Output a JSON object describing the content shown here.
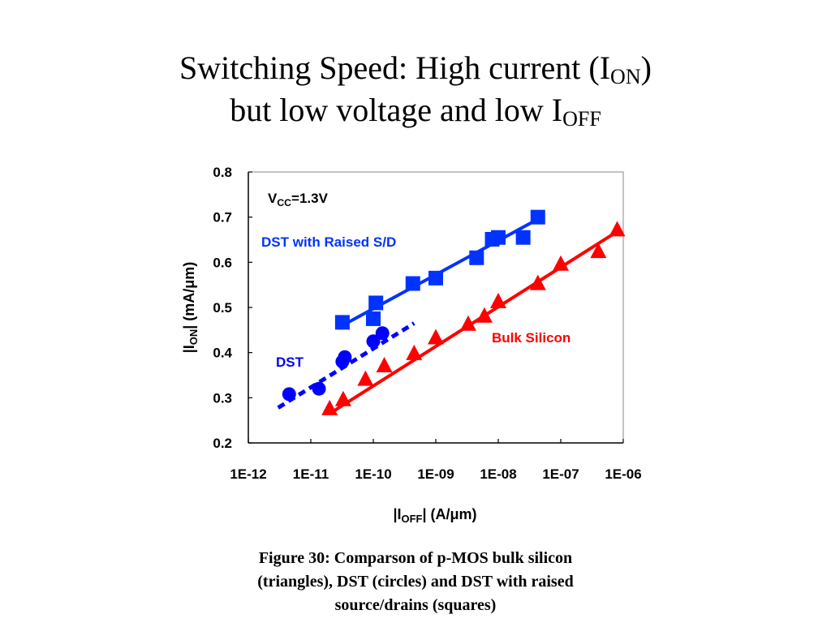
{
  "title": {
    "line1_main": "Switching Speed: High current (I",
    "line1_sub": "ON",
    "line1_end": ")",
    "line2_main": "but low voltage and low I",
    "line2_sub": "OFF"
  },
  "caption": {
    "line1": "Figure 30: Comparson of p-MOS bulk silicon",
    "line2": "(triangles), DST (circles) and DST with raised",
    "line3": "source/drains (squares)"
  },
  "colors": {
    "bulk": "#ff0000",
    "dst": "#0000ff",
    "raised": "#0033ff",
    "axis": "#000000"
  },
  "chart_data": {
    "type": "scatter",
    "xscale": "log",
    "xlim": [
      1e-12,
      1e-06
    ],
    "ylim": [
      0.2,
      0.8
    ],
    "xticks": [
      "1E-12",
      "1E-11",
      "1E-10",
      "1E-09",
      "1E-08",
      "1E-07",
      "1E-06"
    ],
    "yticks": [
      "0.2",
      "0.3",
      "0.4",
      "0.5",
      "0.6",
      "0.7",
      "0.8"
    ],
    "xlabel": {
      "pre": "|I",
      "sub": "OFF",
      "post": "| (A/μm)"
    },
    "ylabel": {
      "pre": "|I",
      "sub": "ON",
      "post": "| (mA/μm)"
    },
    "annotation": {
      "pre": "V",
      "sub": "CC",
      "post": "=1.3V"
    },
    "grid": false,
    "series": [
      {
        "name": "DST with Raised S/D",
        "marker": "square",
        "color": "#0033ff",
        "points": [
          [
            3.2e-11,
            0.467
          ],
          [
            1.1e-10,
            0.51
          ],
          [
            1e-10,
            0.475
          ],
          [
            4.3e-10,
            0.553
          ],
          [
            1e-09,
            0.565
          ],
          [
            4.5e-09,
            0.61
          ],
          [
            8e-09,
            0.651
          ],
          [
            1e-08,
            0.655
          ],
          [
            2.5e-08,
            0.655
          ],
          [
            4.3e-08,
            0.7
          ]
        ],
        "fit": [
          [
            3.2e-11,
            0.46
          ],
          [
            4.5e-08,
            0.697
          ]
        ],
        "fit_style": "solid"
      },
      {
        "name": "DST",
        "marker": "circle",
        "color": "#0000ff",
        "points": [
          [
            4.5e-12,
            0.308
          ],
          [
            1.35e-11,
            0.32
          ],
          [
            3.2e-11,
            0.38
          ],
          [
            3.5e-11,
            0.39
          ],
          [
            1e-10,
            0.425
          ],
          [
            1.4e-10,
            0.443
          ]
        ],
        "fit": [
          [
            3e-12,
            0.278
          ],
          [
            4.5e-10,
            0.465
          ]
        ],
        "fit_style": "dashed"
      },
      {
        "name": "Bulk Silicon",
        "marker": "triangle",
        "color": "#ff0000",
        "points": [
          [
            2e-11,
            0.275
          ],
          [
            3.3e-11,
            0.295
          ],
          [
            7.5e-11,
            0.34
          ],
          [
            1.5e-10,
            0.37
          ],
          [
            4.5e-10,
            0.397
          ],
          [
            1e-09,
            0.432
          ],
          [
            3.3e-09,
            0.462
          ],
          [
            6e-09,
            0.48
          ],
          [
            1e-08,
            0.512
          ],
          [
            4.3e-08,
            0.552
          ],
          [
            1e-07,
            0.595
          ],
          [
            4e-07,
            0.623
          ],
          [
            8e-07,
            0.671
          ]
        ],
        "fit": [
          [
            2e-11,
            0.265
          ],
          [
            8e-07,
            0.668
          ]
        ],
        "fit_style": "solid"
      }
    ]
  }
}
